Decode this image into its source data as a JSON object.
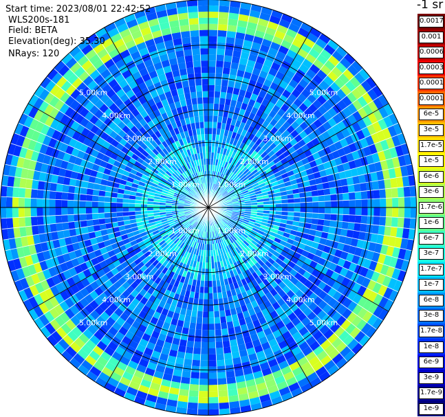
{
  "info": {
    "start_time": "Start time: 2023/08/01 22:42:52",
    "device": "WLS200s-181",
    "field": "Field: BETA",
    "elevation": "Elevation(deg): 35.30",
    "nrays": "NRays: 120"
  },
  "colorbar": {
    "title": "-1 sr",
    "labels": [
      "0.0017",
      "0.001",
      "0.0006",
      "0.0003",
      "0.00017",
      "0.0001",
      "6e-5",
      "3e-5",
      "1.7e-5",
      "1e-5",
      "6e-6",
      "3e-6",
      "1.7e-6",
      "1e-6",
      "6e-7",
      "3e-7",
      "1.7e-7",
      "1e-7",
      "6e-8",
      "3e-8",
      "1.7e-8",
      "1e-8",
      "6e-9",
      "3e-9",
      "1.7e-9",
      "1e-9"
    ],
    "colors": [
      "#7a0000",
      "#a00000",
      "#c80000",
      "#f00000",
      "#ff3a00",
      "#ff6a00",
      "#ff9a00",
      "#ffc000",
      "#ffe000",
      "#ffff00",
      "#d8ff20",
      "#b0ff50",
      "#90ff70",
      "#60ff90",
      "#40ffc0",
      "#20ffe0",
      "#00e8ff",
      "#00c0ff",
      "#0098ff",
      "#0070ff",
      "#0050ff",
      "#0030ff",
      "#0010f0",
      "#0000c8",
      "#0000a0",
      "#000080"
    ]
  },
  "chart_data": {
    "type": "heatmap",
    "title": "",
    "nrays": 120,
    "field": "BETA",
    "elevation_deg": 35.3,
    "range_unit": "km",
    "range_rings": [
      {
        "km": 1.0,
        "label": "1.00km"
      },
      {
        "km": 2.0,
        "label": "2.00km"
      },
      {
        "km": 3.0,
        "label": "3.00km"
      },
      {
        "km": 4.0,
        "label": "4.00km"
      },
      {
        "km": 5.0,
        "label": "5.00km"
      }
    ],
    "max_range_km": 6.4,
    "radial_lines_deg": [
      0,
      30,
      60,
      90,
      120,
      150,
      180,
      210,
      240,
      270,
      300,
      330
    ],
    "range_profile": [
      {
        "from_km": 0.0,
        "to_km": 2.3,
        "value": "1e-7"
      },
      {
        "from_km": 2.3,
        "to_km": 5.5,
        "value": "3e-8"
      },
      {
        "from_km": 5.5,
        "to_km": 6.0,
        "value": "1.7e-6"
      },
      {
        "from_km": 6.0,
        "to_km": 6.4,
        "value": "3e-8"
      }
    ]
  }
}
